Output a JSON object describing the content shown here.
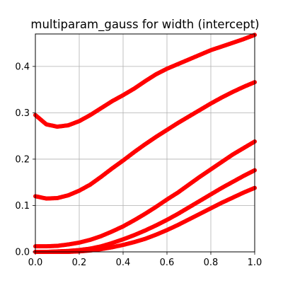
{
  "chart_data": {
    "type": "scatter",
    "title": "multiparam_gauss for width (intercept)",
    "xlabel": "",
    "ylabel": "",
    "xlim": [
      0.0,
      1.0
    ],
    "ylim": [
      0.0,
      0.47
    ],
    "x_ticks": [
      "0.0",
      "0.2",
      "0.4",
      "0.6",
      "0.8",
      "1.0"
    ],
    "x_tick_values": [
      0.0,
      0.2,
      0.4,
      0.6,
      0.8,
      1.0
    ],
    "y_ticks": [
      "0.0",
      "0.1",
      "0.2",
      "0.3",
      "0.4"
    ],
    "y_tick_values": [
      0.0,
      0.1,
      0.2,
      0.3,
      0.4
    ],
    "grid": true,
    "legend": "none",
    "marker_color": "#ff0000",
    "series": [
      {
        "x": [
          0.0,
          0.05,
          0.1,
          0.15,
          0.2,
          0.25,
          0.3,
          0.35,
          0.4,
          0.45,
          0.5,
          0.55,
          0.6,
          0.65,
          0.7,
          0.75,
          0.8,
          0.85,
          0.9,
          0.95,
          1.0
        ],
        "y": [
          0.295,
          0.275,
          0.27,
          0.273,
          0.282,
          0.295,
          0.31,
          0.325,
          0.338,
          0.352,
          0.368,
          0.383,
          0.395,
          0.405,
          0.415,
          0.425,
          0.435,
          0.443,
          0.451,
          0.459,
          0.468
        ]
      },
      {
        "x": [
          0.0,
          0.05,
          0.1,
          0.15,
          0.2,
          0.25,
          0.3,
          0.35,
          0.4,
          0.45,
          0.5,
          0.55,
          0.6,
          0.65,
          0.7,
          0.75,
          0.8,
          0.85,
          0.9,
          0.95,
          1.0
        ],
        "y": [
          0.12,
          0.115,
          0.116,
          0.122,
          0.132,
          0.145,
          0.162,
          0.18,
          0.197,
          0.215,
          0.232,
          0.248,
          0.263,
          0.278,
          0.292,
          0.306,
          0.32,
          0.333,
          0.345,
          0.356,
          0.366
        ]
      },
      {
        "x": [
          0.0,
          0.05,
          0.1,
          0.15,
          0.2,
          0.25,
          0.3,
          0.35,
          0.4,
          0.45,
          0.5,
          0.55,
          0.6,
          0.65,
          0.7,
          0.75,
          0.8,
          0.85,
          0.9,
          0.95,
          1.0
        ],
        "y": [
          0.012,
          0.012,
          0.013,
          0.016,
          0.02,
          0.026,
          0.034,
          0.044,
          0.055,
          0.068,
          0.082,
          0.097,
          0.113,
          0.128,
          0.145,
          0.162,
          0.178,
          0.194,
          0.21,
          0.224,
          0.238
        ]
      },
      {
        "x": [
          0.0,
          0.05,
          0.1,
          0.15,
          0.2,
          0.25,
          0.3,
          0.35,
          0.4,
          0.45,
          0.5,
          0.55,
          0.6,
          0.65,
          0.7,
          0.75,
          0.8,
          0.85,
          0.9,
          0.95,
          1.0
        ],
        "y": [
          0.0,
          0.0,
          0.001,
          0.002,
          0.004,
          0.007,
          0.012,
          0.019,
          0.027,
          0.036,
          0.046,
          0.057,
          0.069,
          0.082,
          0.096,
          0.11,
          0.124,
          0.138,
          0.151,
          0.164,
          0.176
        ]
      },
      {
        "x": [
          0.0,
          0.05,
          0.1,
          0.15,
          0.2,
          0.25,
          0.3,
          0.35,
          0.4,
          0.45,
          0.5,
          0.55,
          0.6,
          0.65,
          0.7,
          0.75,
          0.8,
          0.85,
          0.9,
          0.95,
          1.0
        ],
        "y": [
          0.0,
          0.0,
          0.0,
          0.0,
          0.001,
          0.003,
          0.006,
          0.01,
          0.015,
          0.021,
          0.028,
          0.037,
          0.047,
          0.058,
          0.07,
          0.082,
          0.094,
          0.106,
          0.117,
          0.128,
          0.138
        ]
      }
    ]
  }
}
